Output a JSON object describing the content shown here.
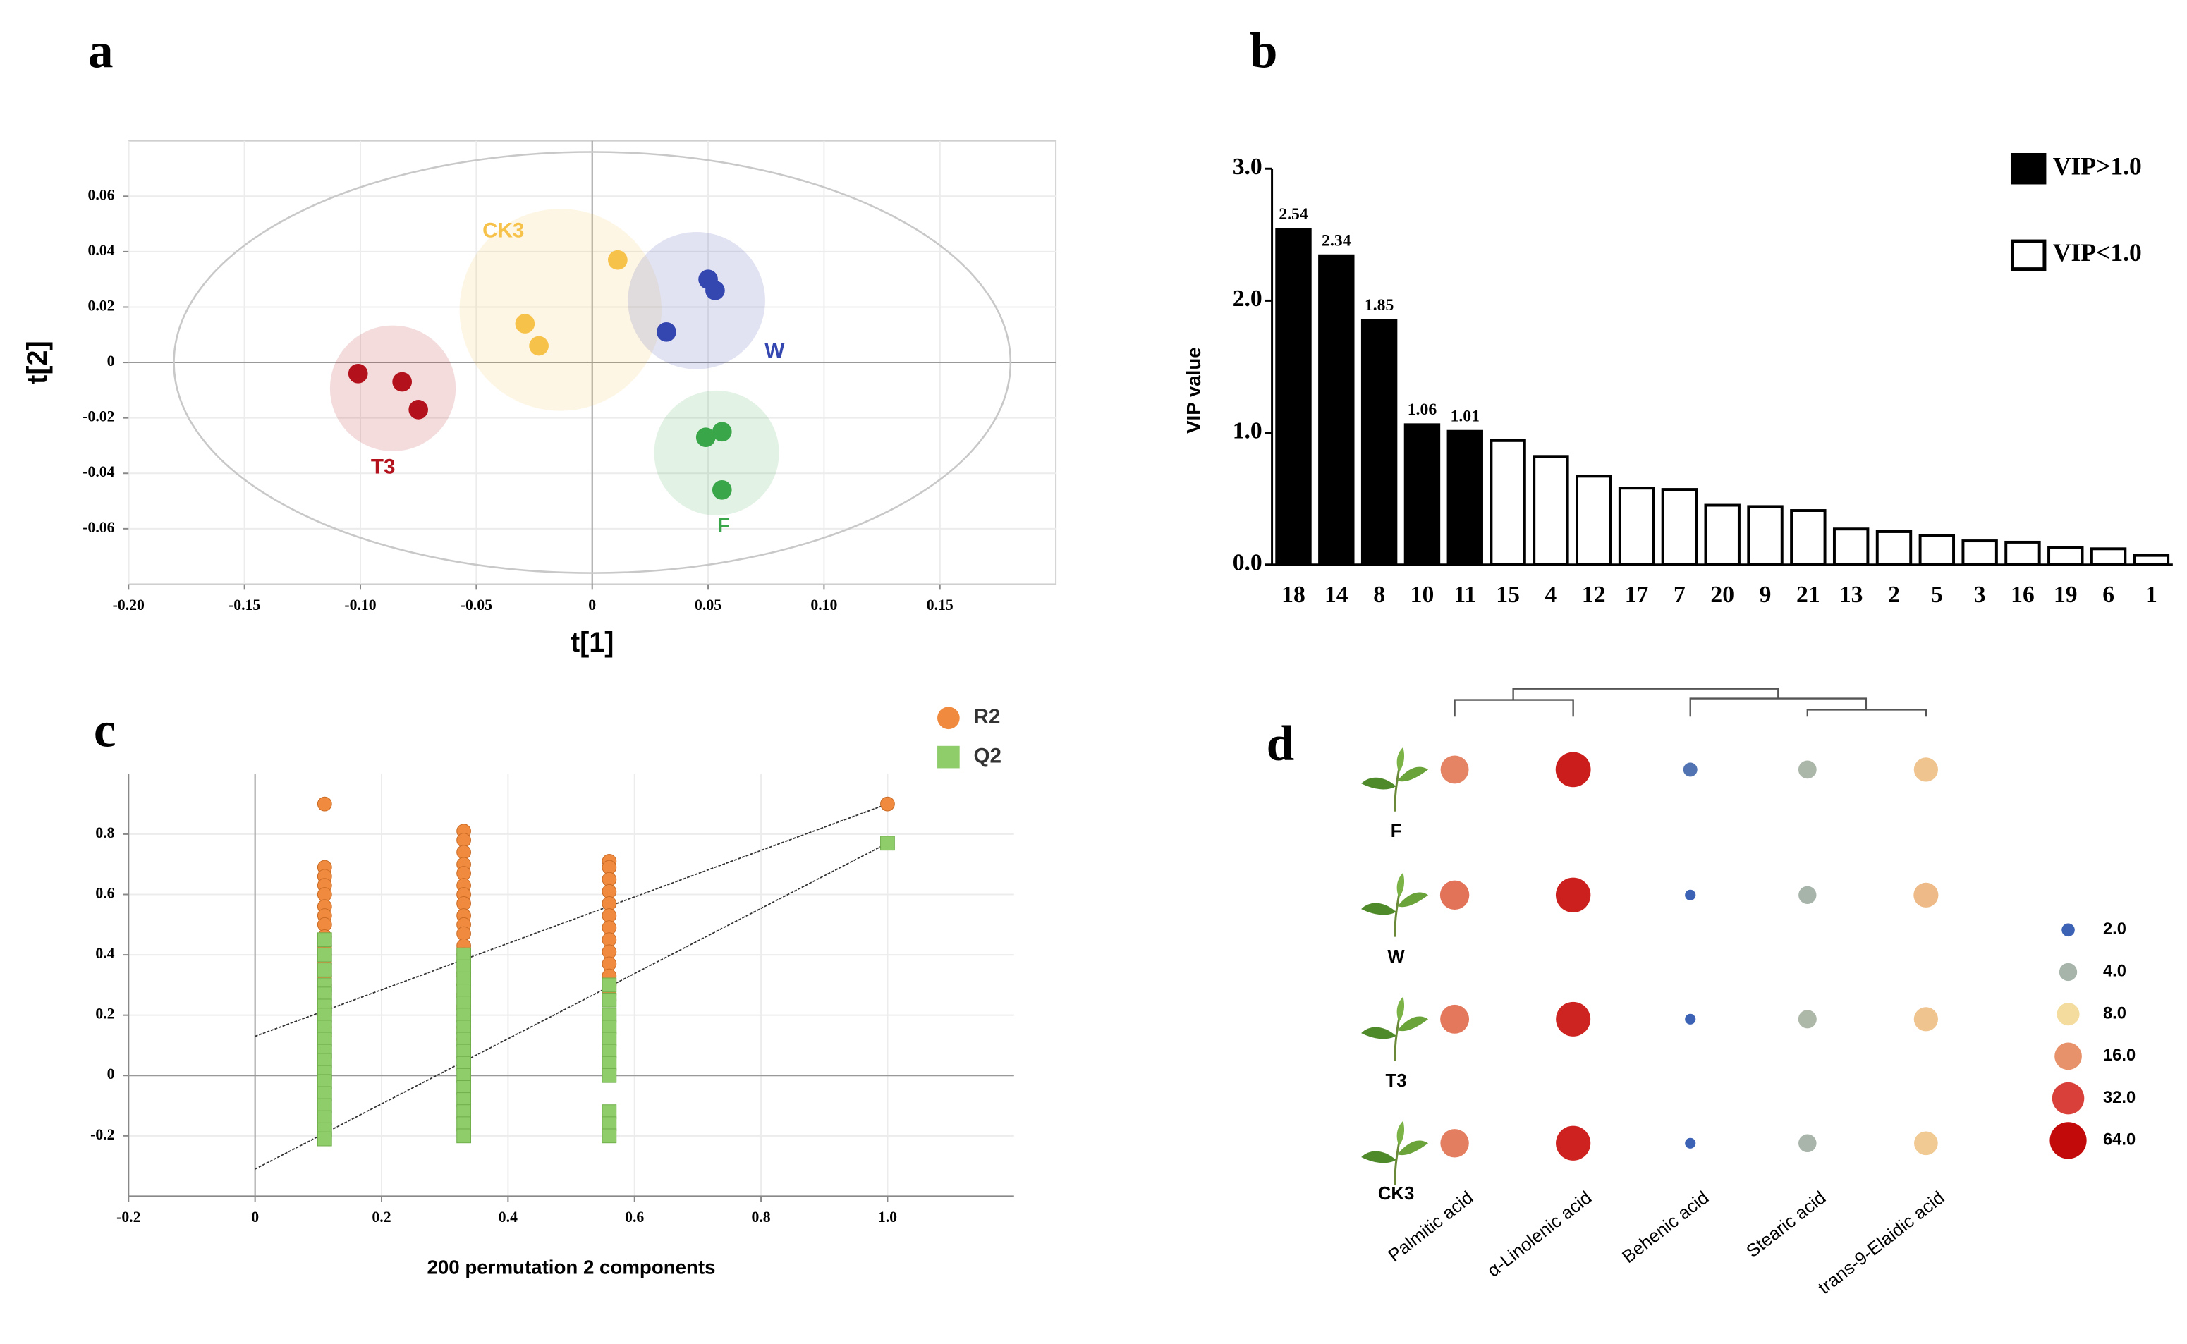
{
  "chart_data": [
    {
      "type": "scatter",
      "panel": "a",
      "xlabel": "t[1]",
      "ylabel": "t[2]",
      "xlim": [
        -0.2,
        0.2
      ],
      "ylim": [
        -0.08,
        0.08
      ],
      "xticks": [
        {
          "value": -0.2,
          "label": "-0.20"
        },
        -0.15,
        {
          "value": -0.1,
          "label": "-0.10"
        },
        -0.05,
        0,
        0.05,
        {
          "value": 0.1,
          "label": "0.10"
        },
        0.15
      ],
      "yticks": [
        -0.06,
        -0.04,
        -0.02,
        0,
        0.02,
        0.04,
        0.06
      ],
      "grid": true,
      "frame": true,
      "zero_lines": true,
      "group_ellipses": true,
      "confidence_ellipse": true,
      "series": [
        {
          "name": "T3",
          "color": "#b3121d",
          "x": [
            -0.101,
            -0.082,
            -0.075
          ],
          "values": [
            -0.004,
            -0.007,
            -0.017
          ]
        },
        {
          "name": "CK3",
          "color": "#f6c24a",
          "x": [
            0.011,
            -0.029,
            -0.023
          ],
          "values": [
            0.037,
            0.014,
            0.006
          ]
        },
        {
          "name": "W",
          "color": "#3446b0",
          "x": [
            0.05,
            0.053,
            0.032
          ],
          "values": [
            0.03,
            0.026,
            0.011
          ]
        },
        {
          "name": "F",
          "color": "#3aa64a",
          "x": [
            0.056,
            0.049,
            0.056
          ],
          "values": [
            -0.025,
            -0.027,
            -0.046
          ]
        }
      ]
    },
    {
      "type": "bar",
      "panel": "b",
      "ylabel": "VIP value",
      "categories": [
        "18",
        "14",
        "8",
        "10",
        "11",
        "15",
        "4",
        "12",
        "17",
        "7",
        "20",
        "9",
        "21",
        "13",
        "2",
        "5",
        "3",
        "16",
        "19",
        "6",
        "1"
      ],
      "ylim": [
        0,
        3.0
      ],
      "yticks": [
        {
          "value": 0,
          "label": "0.0"
        },
        {
          "value": 1,
          "label": "1.0"
        },
        {
          "value": 2,
          "label": "2.0"
        },
        {
          "value": 3,
          "label": "3.0"
        }
      ],
      "series": [
        {
          "name": "VIP>1.0",
          "color": "#000000",
          "labels": true,
          "values": [
            2.54,
            2.34,
            1.85,
            1.06,
            1.01,
            null,
            null,
            null,
            null,
            null,
            null,
            null,
            null,
            null,
            null,
            null,
            null,
            null,
            null,
            null,
            null
          ]
        },
        {
          "name": "VIP<1.0",
          "color": "#ffffff",
          "labels": false,
          "values": [
            null,
            null,
            null,
            null,
            null,
            0.94,
            0.82,
            0.67,
            0.58,
            0.57,
            0.45,
            0.44,
            0.41,
            0.27,
            0.25,
            0.22,
            0.18,
            0.17,
            0.13,
            0.12,
            0.07
          ]
        }
      ]
    },
    {
      "type": "scatter",
      "panel": "c",
      "xlabel": "200 permutation 2 components",
      "xlim": [
        -0.2,
        1.2
      ],
      "ylim": [
        -0.4,
        1.0
      ],
      "xticks": [
        -0.2,
        0,
        0.2,
        0.4,
        0.6,
        0.8,
        {
          "value": 1,
          "label": "1.0"
        }
      ],
      "yticks": [
        -0.2,
        0,
        0.2,
        0.4,
        0.6,
        0.8
      ],
      "grid": true,
      "frame": false,
      "zero_lines": true,
      "legend": "top-right",
      "series": [
        {
          "name": "R2",
          "color": "#f08a3e",
          "marker": "circle",
          "x": [
            0.11,
            0.11,
            0.11,
            0.11,
            0.11,
            0.11,
            0.11,
            0.11,
            0.11,
            0.11,
            0.11,
            0.11,
            0.11,
            0.11,
            0.11,
            0.11,
            0.11,
            0.11,
            0.11,
            0.33,
            0.33,
            0.33,
            0.33,
            0.33,
            0.33,
            0.33,
            0.33,
            0.33,
            0.33,
            0.33,
            0.33,
            0.33,
            0.33,
            0.33,
            0.33,
            0.33,
            0.33,
            0.33,
            0.33,
            0.33,
            0.56,
            0.56,
            0.56,
            0.56,
            0.56,
            0.56,
            0.56,
            0.56,
            0.56,
            0.56,
            0.56,
            0.56,
            0.56,
            0.56,
            1
          ],
          "values": [
            0.9,
            0.69,
            0.66,
            0.63,
            0.6,
            0.56,
            0.53,
            0.5,
            0.46,
            0.43,
            0.4,
            0.37,
            0.33,
            0.3,
            0.27,
            0.23,
            0.2,
            0.16,
            0.13,
            0.81,
            0.78,
            0.74,
            0.7,
            0.67,
            0.63,
            0.6,
            0.57,
            0.53,
            0.5,
            0.47,
            0.43,
            0.4,
            0.36,
            0.33,
            0.3,
            0.27,
            0.23,
            0.2,
            0.16,
            0.12,
            0.71,
            0.69,
            0.65,
            0.61,
            0.57,
            0.53,
            0.49,
            0.45,
            0.41,
            0.37,
            0.33,
            0.3,
            0.27,
            0.25,
            0.9
          ]
        },
        {
          "name": "Q2",
          "color": "#8fcc6a",
          "marker": "square",
          "x": [
            0.11,
            0.11,
            0.11,
            0.11,
            0.11,
            0.11,
            0.11,
            0.11,
            0.11,
            0.11,
            0.11,
            0.11,
            0.11,
            0.11,
            0.11,
            0.11,
            0.11,
            0.11,
            0.33,
            0.33,
            0.33,
            0.33,
            0.33,
            0.33,
            0.33,
            0.33,
            0.33,
            0.33,
            0.33,
            0.33,
            0.33,
            0.33,
            0.33,
            0.33,
            0.56,
            0.56,
            0.56,
            0.56,
            0.56,
            0.56,
            0.56,
            0.56,
            0.56,
            0.56,
            0.56,
            1
          ],
          "values": [
            0.45,
            0.4,
            0.35,
            0.3,
            0.27,
            0.23,
            0.2,
            0.16,
            0.12,
            0.08,
            0.05,
            0.01,
            -0.02,
            -0.06,
            -0.1,
            -0.14,
            -0.18,
            -0.21,
            0.4,
            0.36,
            0.32,
            0.28,
            0.24,
            0.2,
            0.16,
            0.12,
            0.08,
            0.04,
            0,
            -0.04,
            -0.08,
            -0.12,
            -0.16,
            -0.2,
            0.3,
            0.25,
            0.2,
            0.16,
            0.12,
            0.08,
            0.04,
            0,
            -0.12,
            -0.16,
            -0.2,
            0.77
          ]
        }
      ],
      "regression_lines": [
        {
          "x": [
            0,
            1
          ],
          "values": [
            0.13,
            0.9
          ]
        },
        {
          "x": [
            0,
            1
          ],
          "values": [
            -0.31,
            0.77
          ]
        }
      ]
    },
    {
      "type": "bubble",
      "panel": "d",
      "rows": [
        "F",
        "W",
        "T3",
        "CK3"
      ],
      "columns": [
        "Palmitic acid",
        "α-Linolenic acid",
        "Behenic acid",
        "Stearic acid",
        "trans-9-Elaidic acid"
      ],
      "values": [
        [
          18,
          50,
          2.3,
          4.2,
          10
        ],
        [
          21,
          48,
          1.4,
          4.0,
          11
        ],
        [
          20,
          46,
          1.4,
          4.3,
          10
        ],
        [
          19,
          47,
          1.4,
          4.1,
          9.5
        ]
      ],
      "legend_values": [
        {
          "value": 2,
          "label": "2.0"
        },
        {
          "value": 4,
          "label": "4.0"
        },
        {
          "value": 8,
          "label": "8.0"
        },
        {
          "value": 16,
          "label": "16.0"
        },
        {
          "value": 32,
          "label": "32.0"
        },
        {
          "value": 64,
          "label": "64.0"
        }
      ],
      "legend_colors": [
        "#3b62b4",
        "#a6b4aa",
        "#f3dc9e",
        "#e8926c",
        "#d9403a",
        "#c30a0a"
      ]
    }
  ]
}
